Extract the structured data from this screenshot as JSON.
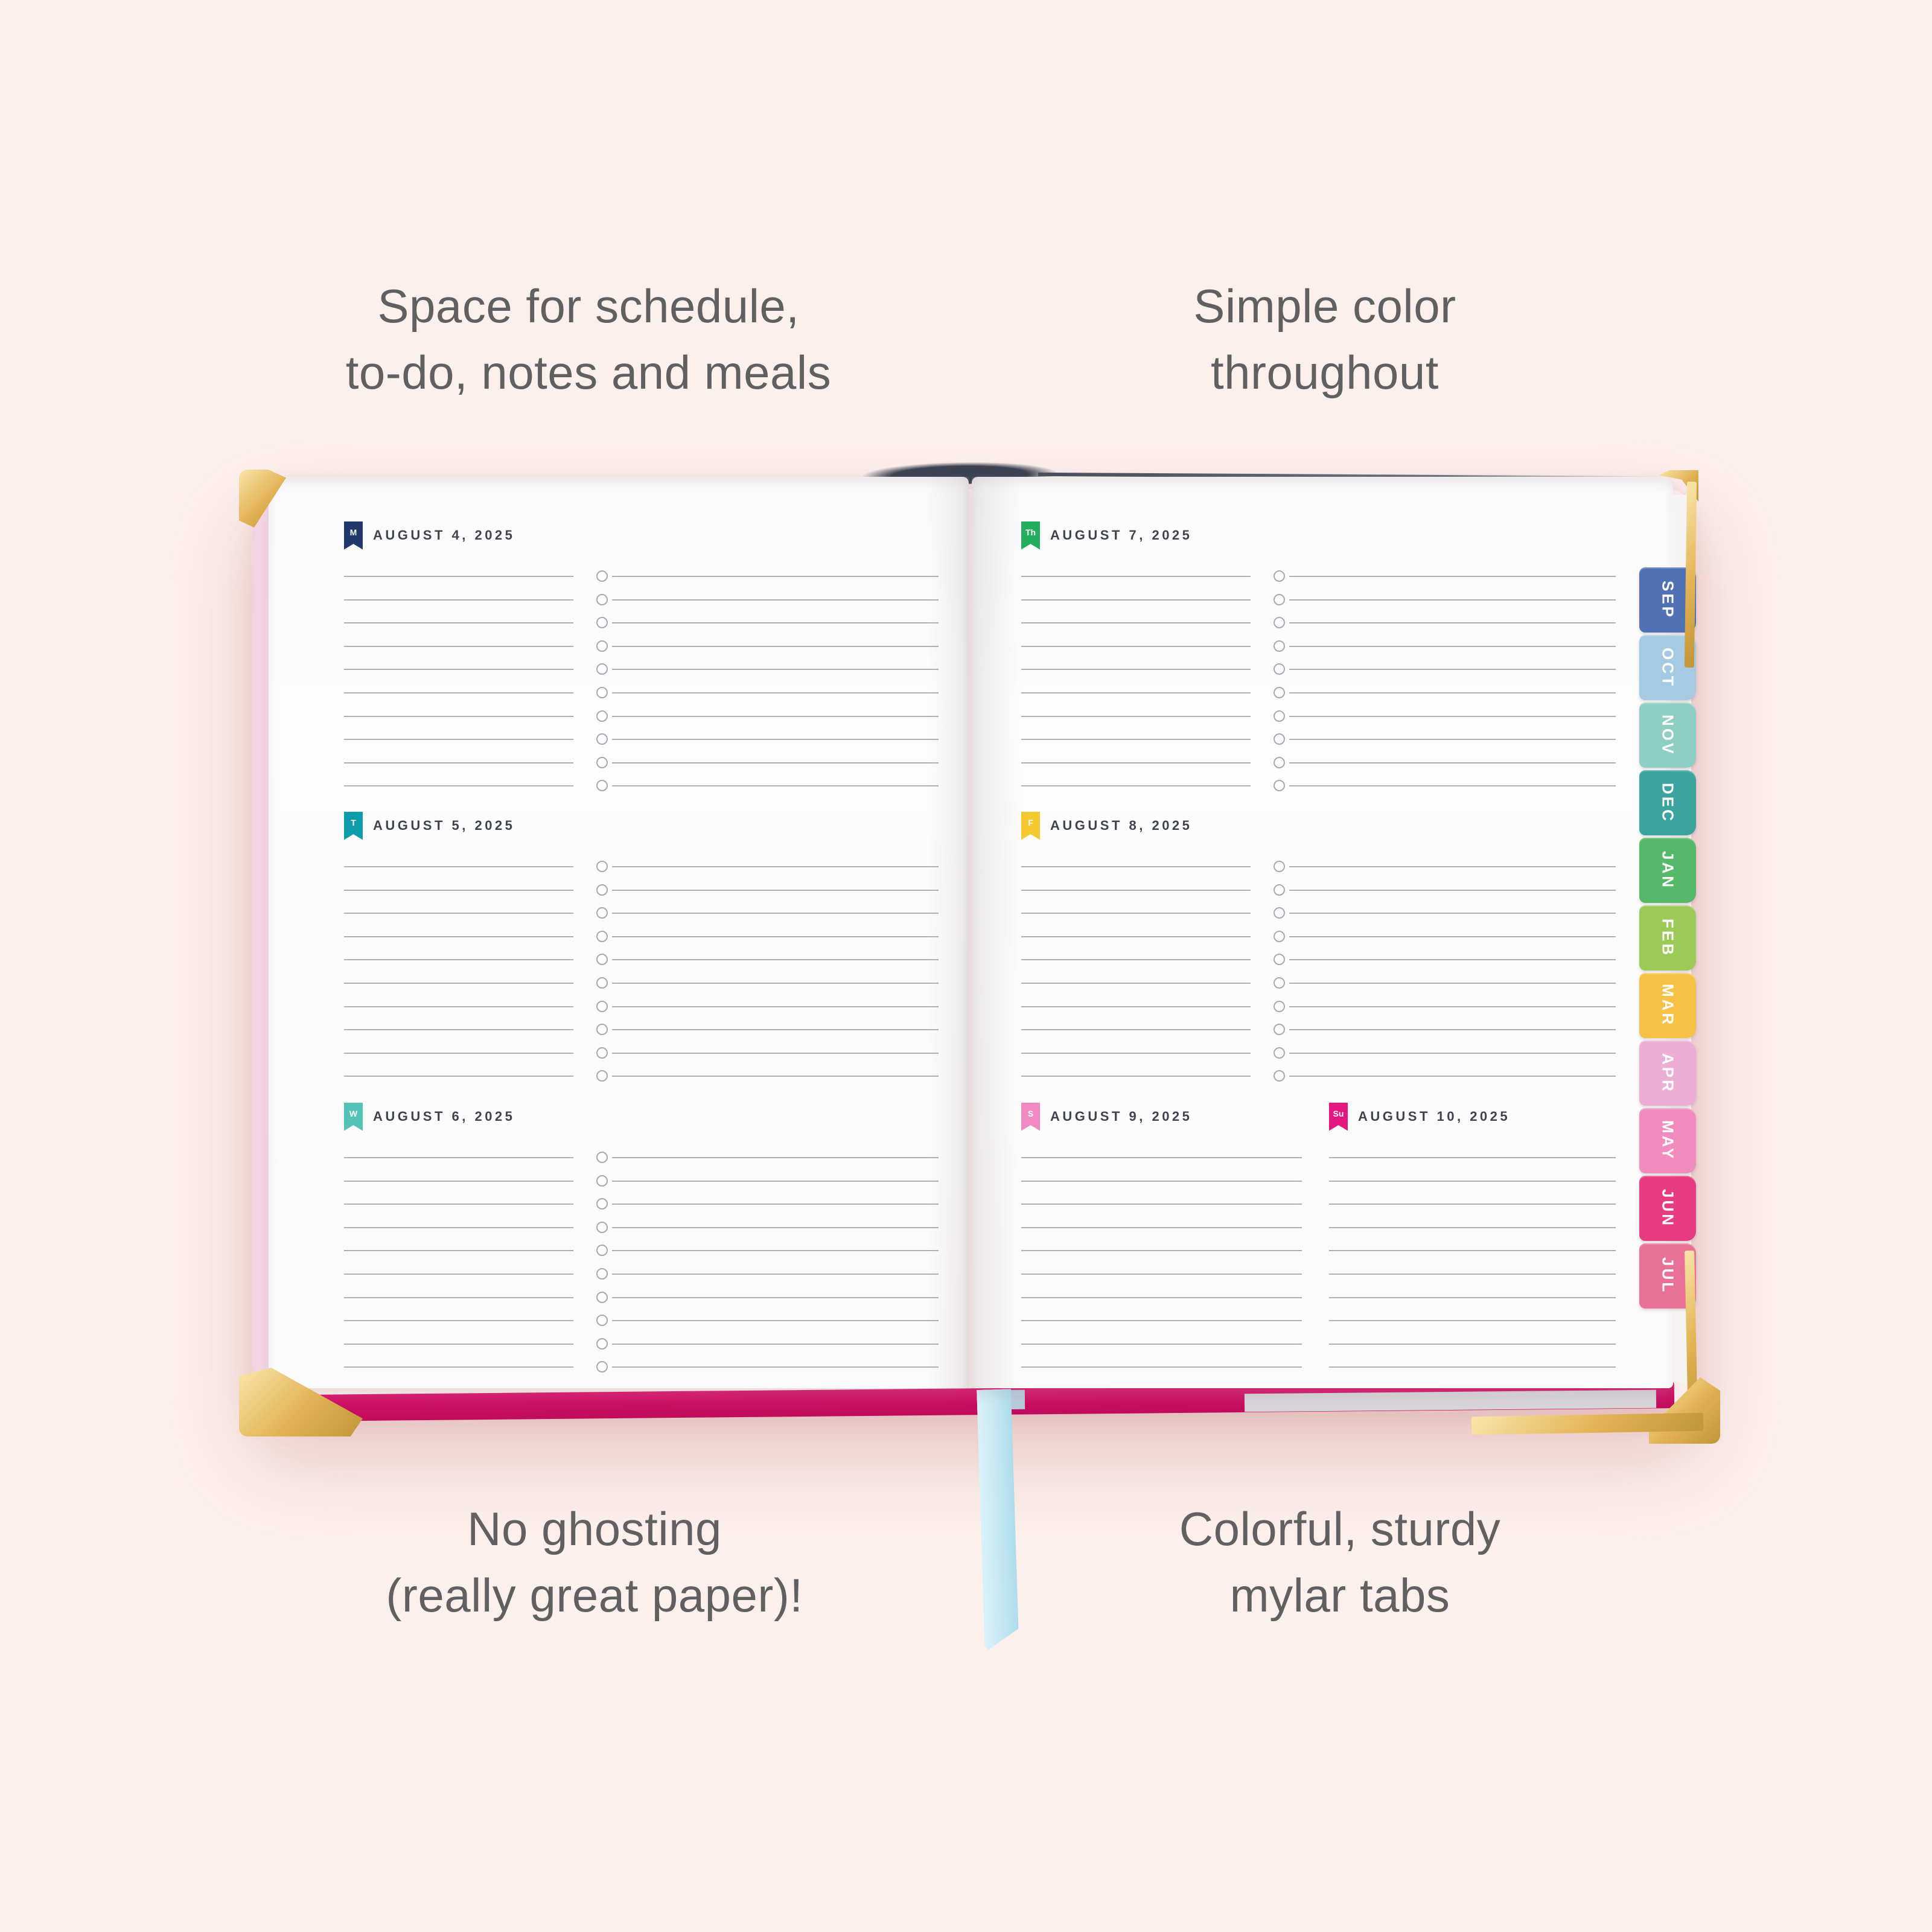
{
  "captions": {
    "top_left": [
      "Space for schedule,",
      "to-do, notes and meals"
    ],
    "top_right": [
      "Simple color",
      "throughout"
    ],
    "bottom_left": [
      "No ghosting",
      "(really great paper)!"
    ],
    "bottom_right": [
      "Colorful, sturdy",
      "mylar tabs"
    ]
  },
  "planner": {
    "week": [
      {
        "day_abbr": "M",
        "date": "AUGUST 4, 2025",
        "flag_color": "#21386B",
        "page": "left",
        "slot": 1,
        "type": "full"
      },
      {
        "day_abbr": "T",
        "date": "AUGUST 5, 2025",
        "flag_color": "#0E9BAA",
        "page": "left",
        "slot": 2,
        "type": "full"
      },
      {
        "day_abbr": "W",
        "date": "AUGUST 6, 2025",
        "flag_color": "#52C3B6",
        "page": "left",
        "slot": 3,
        "type": "full"
      },
      {
        "day_abbr": "Th",
        "date": "AUGUST 7, 2025",
        "flag_color": "#23AE5E",
        "page": "right",
        "slot": 1,
        "type": "full"
      },
      {
        "day_abbr": "F",
        "date": "AUGUST 8, 2025",
        "flag_color": "#F7C930",
        "page": "right",
        "slot": 2,
        "type": "full"
      },
      {
        "day_abbr": "S",
        "date": "AUGUST 9, 2025",
        "flag_color": "#F08AC2",
        "page": "right",
        "slot": 3,
        "type": "half-a"
      },
      {
        "day_abbr": "Su",
        "date": "AUGUST 10, 2025",
        "flag_color": "#E41680",
        "page": "right",
        "slot": 3,
        "type": "half-b"
      }
    ],
    "rows_per_block": 10,
    "month_tabs": [
      {
        "label": "SEP",
        "color": "#5071B3"
      },
      {
        "label": "OCT",
        "color": "#A7CAE3"
      },
      {
        "label": "NOV",
        "color": "#8FCFC3"
      },
      {
        "label": "DEC",
        "color": "#3CA49F"
      },
      {
        "label": "JAN",
        "color": "#56B96A"
      },
      {
        "label": "FEB",
        "color": "#9CCA58"
      },
      {
        "label": "MAR",
        "color": "#F5C245"
      },
      {
        "label": "APR",
        "color": "#ECAED5"
      },
      {
        "label": "MAY",
        "color": "#F08CBE"
      },
      {
        "label": "JUN",
        "color": "#E73C81"
      },
      {
        "label": "JUL",
        "color": "#E97096"
      }
    ],
    "edge_tab_colors": [
      "#9ECDF0",
      "#CBEDF4",
      "#82CFE9",
      "#4E86B1",
      "#4FB98B",
      "#A0D97F",
      "#F7CE5F",
      "#F8DFE9",
      "#F6B8D7",
      "#F2729F"
    ],
    "colors": {
      "background": "#FCF0ED",
      "caption_text": "#606060",
      "page": "#FDFDFE",
      "line": "#ADB1B7",
      "date_text": "#3F444C",
      "cover_edge": "#D8116B",
      "cover_side": "#F8DEEA",
      "ribbon": "#C9E9F4",
      "gold": "#E2B254",
      "spine": "#3B4252"
    }
  }
}
